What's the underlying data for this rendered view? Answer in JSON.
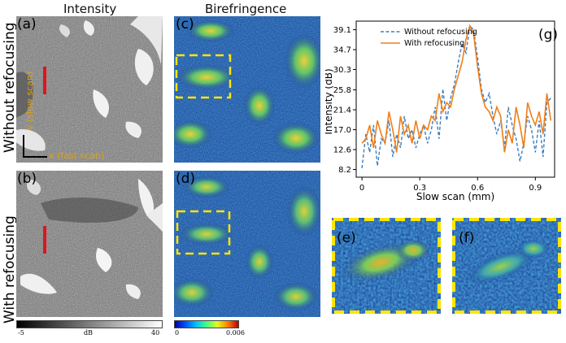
{
  "columns": {
    "intensity_title": "Intensity",
    "birefringence_title": "Birefringence"
  },
  "rows": {
    "top_label": "Without refocusing",
    "bottom_label": "With refocusing"
  },
  "panels": {
    "a": "(a)",
    "b": "(b)",
    "c": "(c)",
    "d": "(d)",
    "e": "(e)",
    "f": "(f)",
    "g": "(g)"
  },
  "axis_hints": {
    "slow": "y (slow scan)",
    "fast": "x (fast scan)"
  },
  "colorbars": {
    "intensity": {
      "min": "-5",
      "unit": "dB",
      "max": "40"
    },
    "birefringence": {
      "min": "0",
      "max": "0.006"
    }
  },
  "colors": {
    "highlight_box": "#ffe600",
    "scan_line": "#e0141e",
    "without_series": "#3b7ec0",
    "with_series": "#f07f1a",
    "biref_background": "#1a3a9a"
  },
  "chart_data": {
    "type": "line",
    "xlabel": "Slow scan (mm)",
    "ylabel": "Intensity (dB)",
    "xlim": [
      -0.03,
      1.0
    ],
    "ylim": [
      6.5,
      41
    ],
    "x_ticks": [
      0,
      0.3,
      0.6,
      0.9
    ],
    "x_tick_labels": [
      "0",
      "0.3",
      "0.6",
      "0.9"
    ],
    "y_ticks": [
      8.2,
      12.6,
      17.0,
      21.4,
      25.8,
      30.3,
      34.7,
      39.1
    ],
    "y_tick_labels": [
      "8.2",
      "12.6",
      "17.0",
      "21.4",
      "25.8",
      "30.3",
      "34.7",
      "39.1"
    ],
    "legend_position": "top-left",
    "x": [
      0.0,
      0.02,
      0.04,
      0.06,
      0.08,
      0.1,
      0.12,
      0.14,
      0.16,
      0.18,
      0.2,
      0.22,
      0.24,
      0.26,
      0.28,
      0.3,
      0.32,
      0.34,
      0.36,
      0.38,
      0.4,
      0.42,
      0.44,
      0.46,
      0.48,
      0.5,
      0.52,
      0.54,
      0.56,
      0.58,
      0.6,
      0.62,
      0.64,
      0.66,
      0.68,
      0.7,
      0.72,
      0.74,
      0.76,
      0.78,
      0.8,
      0.82,
      0.84,
      0.86,
      0.88,
      0.9,
      0.92,
      0.94,
      0.96,
      0.98
    ],
    "series": [
      {
        "name": "Without refocusing",
        "style": "dashed",
        "values": [
          8.5,
          16,
          12,
          18,
          9,
          15,
          14,
          19,
          11,
          16,
          13,
          20,
          15,
          17,
          13,
          16,
          18,
          14,
          17,
          22,
          15,
          26,
          19,
          24,
          27,
          32,
          36,
          34,
          40,
          39,
          33,
          26,
          23,
          25,
          20,
          16,
          19,
          13,
          22,
          18,
          15,
          10,
          14,
          20,
          17,
          12,
          19,
          11,
          23,
          24
        ]
      },
      {
        "name": "With refocusing",
        "style": "solid",
        "values": [
          14,
          15,
          18,
          13,
          19,
          16,
          14,
          21,
          17,
          12,
          20,
          16,
          18,
          14,
          19,
          15,
          18,
          17,
          20,
          19,
          25,
          21,
          23,
          22,
          26,
          29,
          32,
          37,
          40,
          38,
          31,
          25,
          22,
          21,
          19,
          22,
          20,
          12,
          17,
          14,
          22,
          18,
          13,
          23,
          20,
          18,
          21,
          16,
          25,
          19
        ]
      }
    ]
  }
}
